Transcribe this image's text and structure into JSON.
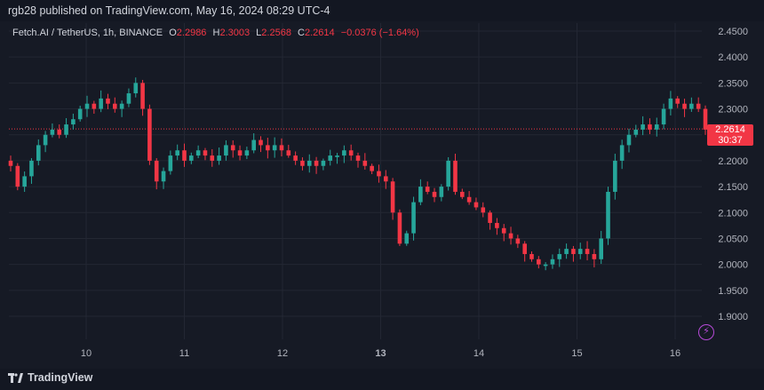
{
  "header": {
    "published_text": "rgb28 published on TradingView.com, May 16, 2024 08:29 UTC-4"
  },
  "legend": {
    "symbol": "Fetch.AI / TetherUS, 1h, BINANCE",
    "open_label": "O",
    "open": "2.2986",
    "high_label": "H",
    "high": "2.3003",
    "low_label": "L",
    "low": "2.2568",
    "close_label": "C",
    "close": "2.2614",
    "change": "−0.0376 (−1.64%)"
  },
  "price_tag": {
    "price": "2.2614",
    "countdown": "30:37"
  },
  "footer": {
    "brand": "TradingView"
  },
  "icons": {
    "lightning": "lightning-icon",
    "logo": "tradingview-logo-icon"
  },
  "colors": {
    "up": "#26a69a",
    "down": "#f23645",
    "background": "#161a25",
    "grid": "#232733",
    "axis_text": "#b2b5be"
  },
  "chart_data": {
    "type": "candlestick",
    "title": "Fetch.AI / TetherUS, 1h, BINANCE",
    "x_ticks": [
      "10",
      "11",
      "12",
      "13",
      "14",
      "15",
      "16"
    ],
    "y_ticks": [
      "2.4500",
      "2.4000",
      "2.3500",
      "2.3000",
      "2.2500",
      "2.2000",
      "2.1500",
      "2.1000",
      "2.0500",
      "2.0000",
      "1.9500",
      "1.9000"
    ],
    "ylim": [
      1.86,
      2.46
    ],
    "last_price": 2.2614,
    "grid": true,
    "approx_close_path": [
      2.19,
      2.15,
      2.17,
      2.2,
      2.23,
      2.25,
      2.26,
      2.25,
      2.27,
      2.28,
      2.3,
      2.31,
      2.3,
      2.32,
      2.31,
      2.3,
      2.31,
      2.33,
      2.35,
      2.3,
      2.2,
      2.16,
      2.18,
      2.21,
      2.22,
      2.2,
      2.21,
      2.22,
      2.21,
      2.2,
      2.21,
      2.23,
      2.22,
      2.21,
      2.22,
      2.24,
      2.23,
      2.22,
      2.23,
      2.22,
      2.21,
      2.2,
      2.19,
      2.2,
      2.19,
      2.2,
      2.21,
      2.21,
      2.22,
      2.21,
      2.2,
      2.19,
      2.18,
      2.17,
      2.16,
      2.1,
      2.04,
      2.06,
      2.12,
      2.15,
      2.14,
      2.13,
      2.15,
      2.2,
      2.14,
      2.13,
      2.12,
      2.11,
      2.1,
      2.08,
      2.07,
      2.06,
      2.05,
      2.04,
      2.02,
      2.01,
      2.0,
      2.0,
      2.01,
      2.02,
      2.03,
      2.02,
      2.03,
      2.02,
      2.01,
      2.05,
      2.14,
      2.2,
      2.23,
      2.25,
      2.26,
      2.27,
      2.26,
      2.27,
      2.3,
      2.32,
      2.31,
      2.3,
      2.31,
      2.3,
      2.26
    ]
  }
}
